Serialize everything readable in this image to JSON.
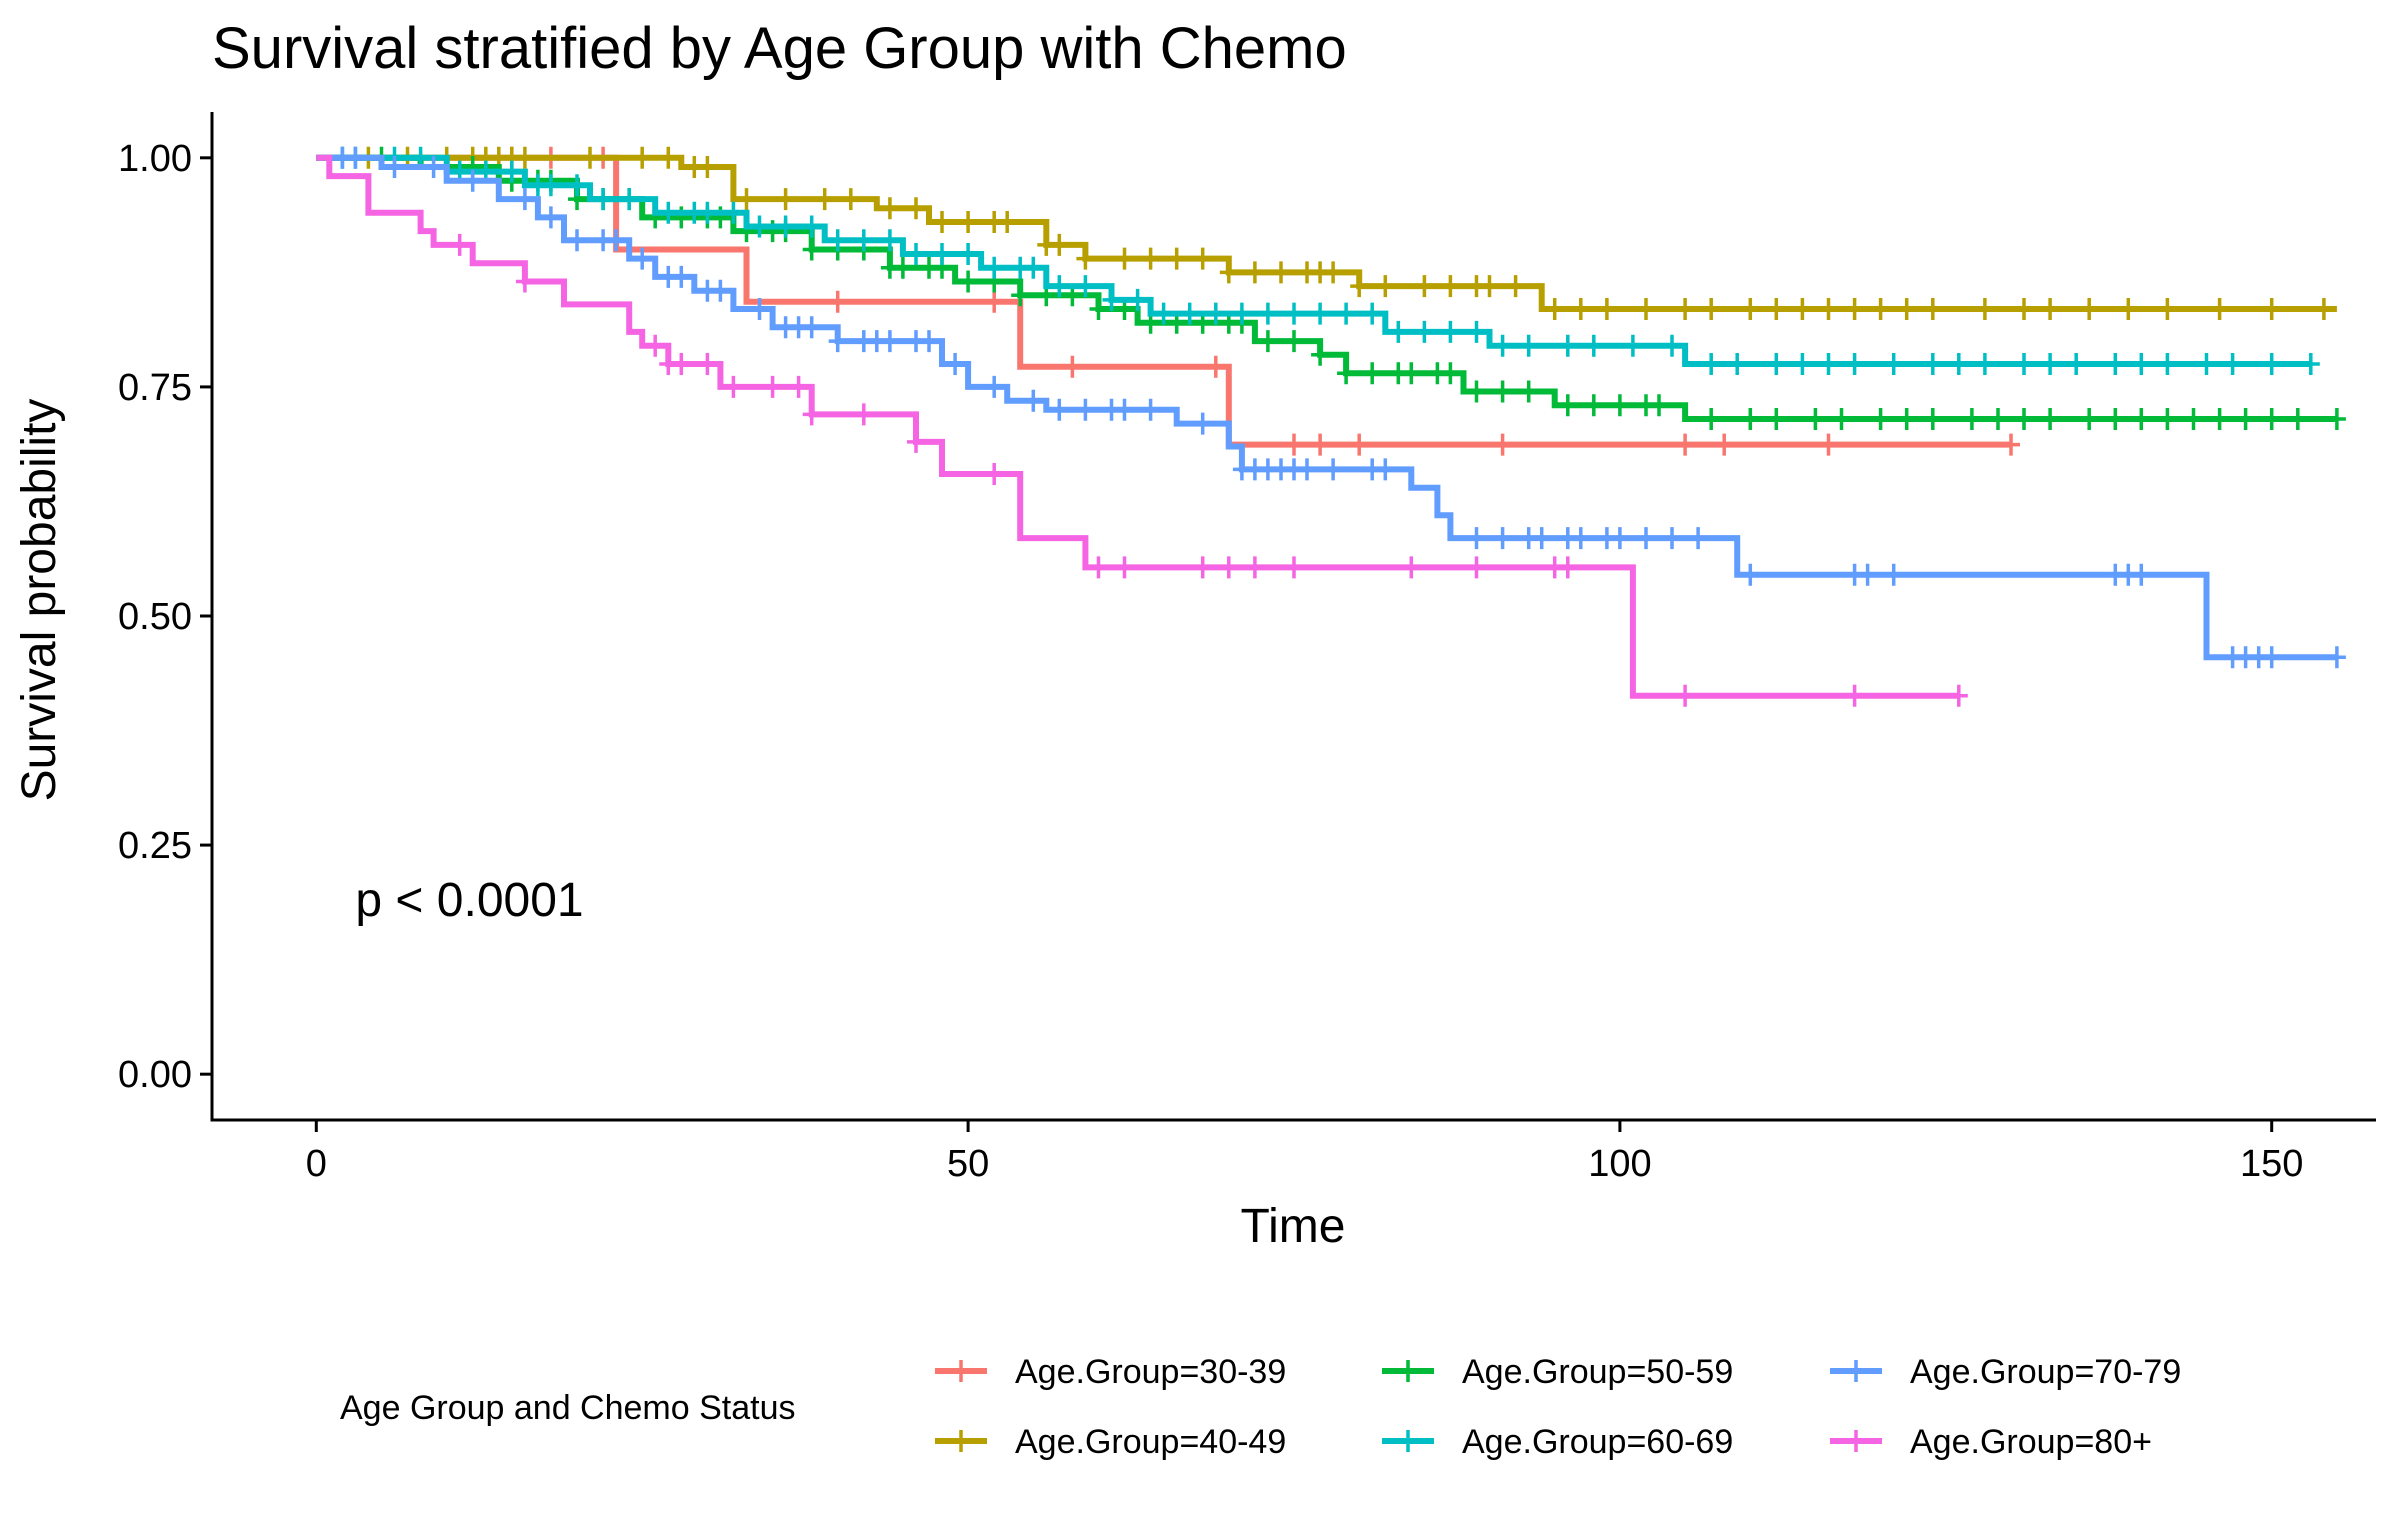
{
  "chart_data": {
    "type": "line",
    "subtype": "kaplan-meier",
    "title": "Survival stratified by Age Group with Chemo",
    "xlabel": "Time",
    "ylabel": "Survival probability",
    "xlim": [
      -8,
      158
    ],
    "ylim": [
      -0.05,
      1.05
    ],
    "xticks": [
      0,
      50,
      100,
      150
    ],
    "yticks": [
      0,
      0.25,
      0.5,
      0.75,
      1.0
    ],
    "ytick_labels": [
      "0.00",
      "0.25",
      "0.50",
      "0.75",
      "1.00"
    ],
    "grid": false,
    "annotation": {
      "text": "p < 0.0001",
      "x": 3,
      "y": 0.19
    },
    "legend": {
      "title": "Age Group and Chemo Status",
      "placement": "bottom"
    },
    "series": [
      {
        "name": "Age.Group=30-39",
        "color": "#F8766D",
        "steps": [
          [
            0,
            1.0
          ],
          [
            23,
            1.0
          ],
          [
            23,
            0.9
          ],
          [
            33,
            0.9
          ],
          [
            33,
            0.843
          ],
          [
            54,
            0.843
          ],
          [
            54,
            0.772
          ],
          [
            70,
            0.772
          ],
          [
            70,
            0.687
          ],
          [
            130,
            0.687
          ]
        ],
        "censor_times": [
          15,
          18,
          22,
          40,
          52,
          58,
          69,
          75,
          77,
          80,
          91,
          105,
          108,
          116,
          130
        ]
      },
      {
        "name": "Age.Group=40-49",
        "color": "#B79F00",
        "steps": [
          [
            0,
            1.0
          ],
          [
            28,
            1.0
          ],
          [
            28,
            0.99
          ],
          [
            32,
            0.99
          ],
          [
            32,
            0.955
          ],
          [
            43,
            0.955
          ],
          [
            43,
            0.945
          ],
          [
            47,
            0.945
          ],
          [
            47,
            0.93
          ],
          [
            56,
            0.93
          ],
          [
            56,
            0.905
          ],
          [
            59,
            0.905
          ],
          [
            59,
            0.89
          ],
          [
            70,
            0.89
          ],
          [
            70,
            0.875
          ],
          [
            80,
            0.875
          ],
          [
            80,
            0.86
          ],
          [
            94,
            0.86
          ],
          [
            94,
            0.835
          ],
          [
            155,
            0.835
          ]
        ],
        "censor_times": [
          4,
          7,
          10,
          12,
          13,
          14,
          15,
          16,
          21,
          25,
          27,
          29,
          30,
          33,
          36,
          39,
          41,
          44,
          46,
          48,
          50,
          52,
          53,
          56,
          57,
          59,
          62,
          64,
          66,
          68,
          70,
          72,
          74,
          76,
          77,
          78,
          80,
          82,
          85,
          87,
          89,
          90,
          92,
          95,
          97,
          99,
          102,
          105,
          107,
          110,
          112,
          114,
          116,
          118,
          120,
          122,
          124,
          128,
          131,
          133,
          136,
          139,
          142,
          146,
          150,
          154
        ]
      },
      {
        "name": "Age.Group=50-59",
        "color": "#00BA38",
        "steps": [
          [
            0,
            1.0
          ],
          [
            8,
            1.0
          ],
          [
            8,
            0.99
          ],
          [
            14,
            0.99
          ],
          [
            14,
            0.975
          ],
          [
            20,
            0.975
          ],
          [
            20,
            0.955
          ],
          [
            25,
            0.955
          ],
          [
            25,
            0.935
          ],
          [
            32,
            0.935
          ],
          [
            32,
            0.92
          ],
          [
            38,
            0.92
          ],
          [
            38,
            0.9
          ],
          [
            44,
            0.9
          ],
          [
            44,
            0.88
          ],
          [
            49,
            0.88
          ],
          [
            49,
            0.865
          ],
          [
            54,
            0.865
          ],
          [
            54,
            0.85
          ],
          [
            60,
            0.85
          ],
          [
            60,
            0.835
          ],
          [
            63,
            0.835
          ],
          [
            63,
            0.82
          ],
          [
            72,
            0.82
          ],
          [
            72,
            0.8
          ],
          [
            77,
            0.8
          ],
          [
            77,
            0.785
          ],
          [
            79,
            0.785
          ],
          [
            79,
            0.765
          ],
          [
            88,
            0.765
          ],
          [
            88,
            0.745
          ],
          [
            95,
            0.745
          ],
          [
            95,
            0.73
          ],
          [
            105,
            0.73
          ],
          [
            105,
            0.715
          ],
          [
            155,
            0.715
          ]
        ],
        "censor_times": [
          5,
          10,
          12,
          15,
          17,
          18,
          20,
          22,
          24,
          26,
          28,
          30,
          31,
          33,
          35,
          36,
          38,
          40,
          42,
          44,
          45,
          47,
          48,
          50,
          52,
          54,
          56,
          58,
          60,
          62,
          64,
          66,
          68,
          70,
          71,
          73,
          75,
          77,
          79,
          81,
          83,
          84,
          86,
          87,
          89,
          91,
          93,
          96,
          98,
          100,
          102,
          103,
          107,
          110,
          112,
          115,
          117,
          120,
          122,
          124,
          127,
          129,
          131,
          133,
          136,
          138,
          140,
          142,
          144,
          146,
          148,
          150,
          152,
          155
        ]
      },
      {
        "name": "Age.Group=60-69",
        "color": "#00BFC4",
        "steps": [
          [
            0,
            1.0
          ],
          [
            10,
            1.0
          ],
          [
            10,
            0.985
          ],
          [
            16,
            0.985
          ],
          [
            16,
            0.97
          ],
          [
            21,
            0.97
          ],
          [
            21,
            0.955
          ],
          [
            26,
            0.955
          ],
          [
            26,
            0.94
          ],
          [
            33,
            0.94
          ],
          [
            33,
            0.925
          ],
          [
            39,
            0.925
          ],
          [
            39,
            0.91
          ],
          [
            45,
            0.91
          ],
          [
            45,
            0.895
          ],
          [
            51,
            0.895
          ],
          [
            51,
            0.88
          ],
          [
            56,
            0.88
          ],
          [
            56,
            0.86
          ],
          [
            61,
            0.86
          ],
          [
            61,
            0.845
          ],
          [
            64,
            0.845
          ],
          [
            64,
            0.83
          ],
          [
            82,
            0.83
          ],
          [
            82,
            0.81
          ],
          [
            90,
            0.81
          ],
          [
            90,
            0.795
          ],
          [
            105,
            0.795
          ],
          [
            105,
            0.775
          ],
          [
            153,
            0.775
          ]
        ],
        "censor_times": [
          2,
          3,
          6,
          8,
          11,
          13,
          15,
          17,
          18,
          20,
          22,
          24,
          27,
          29,
          30,
          32,
          34,
          36,
          38,
          40,
          42,
          44,
          46,
          48,
          50,
          52,
          54,
          55,
          57,
          59,
          61,
          63,
          65,
          67,
          69,
          71,
          73,
          75,
          77,
          79,
          81,
          83,
          85,
          87,
          89,
          91,
          93,
          96,
          98,
          101,
          104,
          107,
          109,
          112,
          114,
          116,
          118,
          121,
          124,
          126,
          128,
          131,
          133,
          135,
          138,
          140,
          142,
          145,
          147,
          150,
          153
        ]
      },
      {
        "name": "Age.Group=70-79",
        "color": "#619CFF",
        "steps": [
          [
            0,
            1.0
          ],
          [
            5,
            1.0
          ],
          [
            5,
            0.99
          ],
          [
            10,
            0.99
          ],
          [
            10,
            0.975
          ],
          [
            14,
            0.975
          ],
          [
            14,
            0.955
          ],
          [
            17,
            0.955
          ],
          [
            17,
            0.935
          ],
          [
            19,
            0.935
          ],
          [
            19,
            0.91
          ],
          [
            24,
            0.91
          ],
          [
            24,
            0.89
          ],
          [
            26,
            0.89
          ],
          [
            26,
            0.87
          ],
          [
            29,
            0.87
          ],
          [
            29,
            0.855
          ],
          [
            32,
            0.855
          ],
          [
            32,
            0.835
          ],
          [
            35,
            0.835
          ],
          [
            35,
            0.815
          ],
          [
            40,
            0.815
          ],
          [
            40,
            0.8
          ],
          [
            48,
            0.8
          ],
          [
            48,
            0.775
          ],
          [
            50,
            0.775
          ],
          [
            50,
            0.75
          ],
          [
            53,
            0.75
          ],
          [
            53,
            0.735
          ],
          [
            56,
            0.735
          ],
          [
            56,
            0.725
          ],
          [
            66,
            0.725
          ],
          [
            66,
            0.71
          ],
          [
            70,
            0.71
          ],
          [
            70,
            0.685
          ],
          [
            71,
            0.685
          ],
          [
            71,
            0.66
          ],
          [
            84,
            0.66
          ],
          [
            84,
            0.64
          ],
          [
            86,
            0.64
          ],
          [
            86,
            0.61
          ],
          [
            87,
            0.61
          ],
          [
            87,
            0.585
          ],
          [
            109,
            0.585
          ],
          [
            109,
            0.545
          ],
          [
            145,
            0.545
          ],
          [
            145,
            0.455
          ],
          [
            155,
            0.455
          ]
        ],
        "censor_times": [
          2,
          3,
          6,
          9,
          12,
          16,
          18,
          20,
          22,
          23,
          25,
          27,
          28,
          30,
          31,
          34,
          36,
          37,
          38,
          40,
          42,
          43,
          44,
          46,
          47,
          49,
          52,
          55,
          57,
          59,
          61,
          62,
          64,
          68,
          71,
          72,
          73,
          74,
          75,
          76,
          78,
          81,
          82,
          89,
          91,
          93,
          94,
          96,
          97,
          99,
          100,
          102,
          104,
          106,
          110,
          118,
          119,
          121,
          138,
          139,
          140,
          147,
          148,
          149,
          150,
          155
        ]
      },
      {
        "name": "Age.Group=80+",
        "color": "#F564E3",
        "steps": [
          [
            0,
            1.0
          ],
          [
            1,
            1.0
          ],
          [
            1,
            0.98
          ],
          [
            4,
            0.98
          ],
          [
            4,
            0.94
          ],
          [
            8,
            0.94
          ],
          [
            8,
            0.92
          ],
          [
            9,
            0.92
          ],
          [
            9,
            0.905
          ],
          [
            12,
            0.905
          ],
          [
            12,
            0.885
          ],
          [
            16,
            0.885
          ],
          [
            16,
            0.865
          ],
          [
            19,
            0.865
          ],
          [
            19,
            0.84
          ],
          [
            24,
            0.84
          ],
          [
            24,
            0.81
          ],
          [
            25,
            0.81
          ],
          [
            25,
            0.795
          ],
          [
            27,
            0.795
          ],
          [
            27,
            0.775
          ],
          [
            31,
            0.775
          ],
          [
            31,
            0.75
          ],
          [
            38,
            0.75
          ],
          [
            38,
            0.72
          ],
          [
            46,
            0.72
          ],
          [
            46,
            0.69
          ],
          [
            48,
            0.69
          ],
          [
            48,
            0.655
          ],
          [
            54,
            0.655
          ],
          [
            54,
            0.585
          ],
          [
            59,
            0.585
          ],
          [
            59,
            0.553
          ],
          [
            101,
            0.553
          ],
          [
            101,
            0.413
          ],
          [
            126,
            0.413
          ]
        ],
        "censor_times": [
          11,
          16,
          26,
          27,
          28,
          30,
          32,
          35,
          37,
          38,
          42,
          46,
          52,
          60,
          62,
          68,
          70,
          72,
          75,
          84,
          89,
          95,
          96,
          105,
          118,
          126
        ]
      }
    ]
  }
}
